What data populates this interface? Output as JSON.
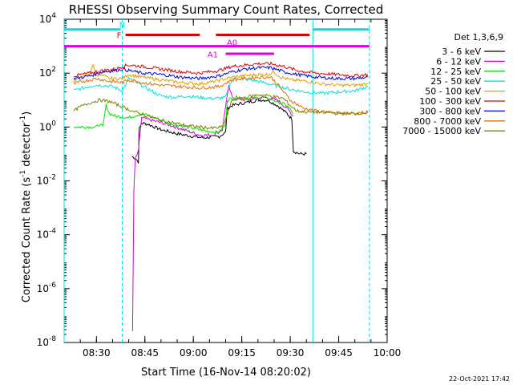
{
  "chart_data": {
    "type": "line",
    "title": "RHESSI Observing Summary Count Rates, Corrected",
    "xlabel": "Start Time (16-Nov-14 08:20:02)",
    "ylabel_main": "Corrected Count Rate (s",
    "ylabel_sup1": "-1",
    "ylabel_mid": " detector",
    "ylabel_sup2": "-1",
    "ylabel_end": ")",
    "xlim": [
      0,
      100
    ],
    "ylim_exp": [
      -8,
      4
    ],
    "y_scale": "log",
    "x_ticks": [
      {
        "label": "08:30",
        "t": 10
      },
      {
        "label": "08:45",
        "t": 25
      },
      {
        "label": "09:00",
        "t": 40
      },
      {
        "label": "09:15",
        "t": 55
      },
      {
        "label": "09:30",
        "t": 70
      },
      {
        "label": "09:45",
        "t": 85
      },
      {
        "label": "10:00",
        "t": 100
      }
    ],
    "y_ticks": [
      {
        "base": "10",
        "exp": "4",
        "e": 4
      },
      {
        "base": "10",
        "exp": "2",
        "e": 2
      },
      {
        "base": "10",
        "exp": "0",
        "e": 0
      },
      {
        "base": "10",
        "exp": "-2",
        "e": -2
      },
      {
        "base": "10",
        "exp": "-4",
        "e": -4
      },
      {
        "base": "10",
        "exp": "-6",
        "e": -6
      },
      {
        "base": "10",
        "exp": "-8",
        "e": -8
      }
    ],
    "legend_title": "Det 1,3,6,9",
    "legend_position": "right",
    "series": [
      {
        "name": "3 - 6 keV",
        "color": "#000000",
        "points": [
          [
            21,
            -1.1
          ],
          [
            22,
            -1.15
          ],
          [
            23,
            -1.3
          ],
          [
            23.2,
            -0.1
          ],
          [
            24,
            0.15
          ],
          [
            26,
            0.1
          ],
          [
            30,
            -0.1
          ],
          [
            35,
            -0.25
          ],
          [
            40,
            -0.35
          ],
          [
            43,
            -0.4
          ],
          [
            48,
            -0.35
          ],
          [
            50,
            -0.2
          ],
          [
            50.5,
            0.7
          ],
          [
            52,
            0.8
          ],
          [
            56,
            0.9
          ],
          [
            60,
            1.0
          ],
          [
            63,
            1.0
          ],
          [
            66,
            0.8
          ],
          [
            69,
            0.5
          ],
          [
            70.5,
            0.3
          ],
          [
            71,
            -0.9
          ],
          [
            73,
            -1.0
          ],
          [
            75,
            -1.0
          ]
        ]
      },
      {
        "name": "6 - 12 keV",
        "color": "#e000e0",
        "points": [
          [
            21.2,
            -7.6
          ],
          [
            21.6,
            -2.4
          ],
          [
            22,
            -1.2
          ],
          [
            23,
            -0.9
          ],
          [
            24,
            0.35
          ],
          [
            27,
            0.25
          ],
          [
            32,
            0.1
          ],
          [
            37,
            -0.1
          ],
          [
            42,
            -0.3
          ],
          [
            46,
            -0.3
          ],
          [
            49,
            -0.1
          ],
          [
            50,
            0.8
          ],
          [
            51,
            1.5
          ],
          [
            52,
            1.1
          ],
          [
            56,
            1.0
          ],
          [
            62,
            1.1
          ],
          [
            66,
            1.0
          ],
          [
            69,
            0.7
          ],
          [
            71,
            0.4
          ]
        ]
      },
      {
        "name": "12 - 25 keV",
        "color": "#00e000",
        "points": [
          [
            3,
            0.0
          ],
          [
            10,
            0.0
          ],
          [
            11,
            0.1
          ],
          [
            12,
            0.0
          ],
          [
            13,
            0.8
          ],
          [
            14,
            0.5
          ],
          [
            16,
            0.4
          ],
          [
            20,
            0.35
          ],
          [
            24,
            0.5
          ],
          [
            28,
            0.35
          ],
          [
            32,
            0.15
          ],
          [
            36,
            0.05
          ],
          [
            40,
            -0.05
          ],
          [
            44,
            -0.15
          ],
          [
            48,
            -0.2
          ],
          [
            50,
            0.1
          ],
          [
            50.5,
            1.0
          ],
          [
            53,
            1.1
          ],
          [
            57,
            1.05
          ],
          [
            61,
            1.1
          ],
          [
            65,
            1.0
          ],
          [
            69,
            0.8
          ],
          [
            71,
            0.5
          ]
        ]
      },
      {
        "name": "25 - 50 keV",
        "color": "#00e0e0",
        "points": [
          [
            3,
            1.35
          ],
          [
            6,
            1.45
          ],
          [
            9,
            1.55
          ],
          [
            12,
            1.55
          ],
          [
            15,
            1.5
          ],
          [
            18,
            1.35
          ],
          [
            20,
            1.8
          ],
          [
            22,
            1.7
          ],
          [
            26,
            1.4
          ],
          [
            30,
            1.15
          ],
          [
            34,
            1.1
          ],
          [
            38,
            1.15
          ],
          [
            42,
            1.1
          ],
          [
            46,
            1.05
          ],
          [
            50,
            1.1
          ],
          [
            52,
            1.8
          ],
          [
            55,
            1.8
          ],
          [
            60,
            1.7
          ],
          [
            65,
            1.55
          ],
          [
            70,
            1.4
          ],
          [
            75,
            1.3
          ],
          [
            80,
            1.25
          ],
          [
            85,
            1.3
          ],
          [
            90,
            1.35
          ],
          [
            94,
            1.5
          ]
        ]
      },
      {
        "name": "50 - 100 keV",
        "color": "#e0a000",
        "points": [
          [
            3,
            1.7
          ],
          [
            6,
            1.85
          ],
          [
            8,
            2.0
          ],
          [
            9,
            2.3
          ],
          [
            10,
            1.95
          ],
          [
            12,
            1.9
          ],
          [
            14,
            1.8
          ],
          [
            18,
            1.8
          ],
          [
            20,
            1.95
          ],
          [
            24,
            1.85
          ],
          [
            30,
            1.75
          ],
          [
            36,
            1.65
          ],
          [
            42,
            1.6
          ],
          [
            47,
            1.7
          ],
          [
            52,
            1.85
          ],
          [
            56,
            1.9
          ],
          [
            60,
            1.95
          ],
          [
            63,
            1.95
          ],
          [
            65,
            2.05
          ],
          [
            67,
            1.85
          ],
          [
            70,
            1.75
          ],
          [
            75,
            1.7
          ],
          [
            80,
            1.6
          ],
          [
            85,
            1.55
          ],
          [
            90,
            1.55
          ],
          [
            94,
            1.6
          ]
        ]
      },
      {
        "name": "100 - 300 keV",
        "color": "#e00000",
        "points": [
          [
            3,
            1.9
          ],
          [
            8,
            2.0
          ],
          [
            12,
            2.1
          ],
          [
            16,
            2.15
          ],
          [
            18,
            2.25
          ],
          [
            20,
            2.3
          ],
          [
            24,
            2.25
          ],
          [
            30,
            2.15
          ],
          [
            36,
            2.05
          ],
          [
            42,
            2.0
          ],
          [
            48,
            2.1
          ],
          [
            52,
            2.25
          ],
          [
            56,
            2.3
          ],
          [
            60,
            2.35
          ],
          [
            64,
            2.35
          ],
          [
            68,
            2.25
          ],
          [
            72,
            2.1
          ],
          [
            78,
            2.0
          ],
          [
            84,
            1.95
          ],
          [
            90,
            1.9
          ],
          [
            94,
            1.95
          ]
        ]
      },
      {
        "name": "300 - 800 keV",
        "color": "#0000e0",
        "points": [
          [
            3,
            1.8
          ],
          [
            8,
            1.9
          ],
          [
            12,
            2.05
          ],
          [
            16,
            2.1
          ],
          [
            18,
            2.15
          ],
          [
            20,
            2.1
          ],
          [
            24,
            2.0
          ],
          [
            30,
            1.95
          ],
          [
            36,
            1.85
          ],
          [
            42,
            1.8
          ],
          [
            48,
            1.9
          ],
          [
            52,
            2.05
          ],
          [
            56,
            2.15
          ],
          [
            60,
            2.2
          ],
          [
            64,
            2.2
          ],
          [
            68,
            2.05
          ],
          [
            72,
            1.95
          ],
          [
            78,
            1.85
          ],
          [
            84,
            1.8
          ],
          [
            90,
            1.8
          ],
          [
            94,
            1.85
          ]
        ]
      },
      {
        "name": "800 - 7000 keV",
        "color": "#e07000",
        "points": [
          [
            3,
            1.6
          ],
          [
            6,
            1.7
          ],
          [
            10,
            1.8
          ],
          [
            14,
            1.7
          ],
          [
            18,
            1.65
          ],
          [
            20,
            1.75
          ],
          [
            24,
            1.65
          ],
          [
            30,
            1.55
          ],
          [
            36,
            1.5
          ],
          [
            42,
            1.45
          ],
          [
            48,
            1.5
          ],
          [
            52,
            1.75
          ],
          [
            56,
            1.8
          ],
          [
            60,
            1.85
          ],
          [
            64,
            1.85
          ],
          [
            66,
            1.6
          ],
          [
            70,
            1.0
          ],
          [
            74,
            0.7
          ],
          [
            80,
            0.55
          ],
          [
            86,
            0.5
          ],
          [
            90,
            0.5
          ],
          [
            94,
            0.55
          ]
        ]
      },
      {
        "name": "7000 - 15000 keV",
        "color": "#808000",
        "points": [
          [
            3,
            0.6
          ],
          [
            5,
            0.75
          ],
          [
            8,
            0.9
          ],
          [
            11,
            1.0
          ],
          [
            14,
            0.95
          ],
          [
            18,
            0.75
          ],
          [
            22,
            0.55
          ],
          [
            26,
            0.4
          ],
          [
            30,
            0.25
          ],
          [
            34,
            0.15
          ],
          [
            38,
            0.05
          ],
          [
            42,
            0.0
          ],
          [
            46,
            -0.05
          ],
          [
            49,
            0.0
          ],
          [
            51,
            0.6
          ],
          [
            52,
            1.0
          ],
          [
            56,
            1.1
          ],
          [
            60,
            1.2
          ],
          [
            64,
            1.15
          ],
          [
            68,
            1.05
          ],
          [
            70,
            0.8
          ],
          [
            72,
            0.6
          ],
          [
            76,
            0.55
          ],
          [
            80,
            0.55
          ],
          [
            86,
            0.5
          ],
          [
            90,
            0.5
          ],
          [
            94,
            0.55
          ]
        ]
      }
    ],
    "vlines": [
      {
        "t": 0,
        "style": "solid"
      },
      {
        "t": 18,
        "style": "dashed"
      },
      {
        "t": 77,
        "style": "solid"
      },
      {
        "t": 94.5,
        "style": "dashed"
      }
    ],
    "flag_bars": [
      {
        "label": "N",
        "color": "#00e0e0",
        "label_e": 3.8,
        "segments": [
          [
            0,
            17.5
          ],
          [
            77,
            94.5
          ]
        ],
        "e": 3.62
      },
      {
        "label": "F",
        "color": "#e00000",
        "label_e": 3.42,
        "segments": [
          [
            19,
            42
          ],
          [
            47,
            76
          ]
        ],
        "e": 3.42
      },
      {
        "label": "A0",
        "color": "#e000e0",
        "label_e": 3.15,
        "segments": [
          [
            0,
            94.5
          ]
        ],
        "e": 3.0
      },
      {
        "label": "A1",
        "color": "#e000e0",
        "label_e": 2.7,
        "segments": [
          [
            50,
            65
          ]
        ],
        "e": 2.72
      }
    ]
  },
  "timestamp": "22-Oct-2021 17:42"
}
